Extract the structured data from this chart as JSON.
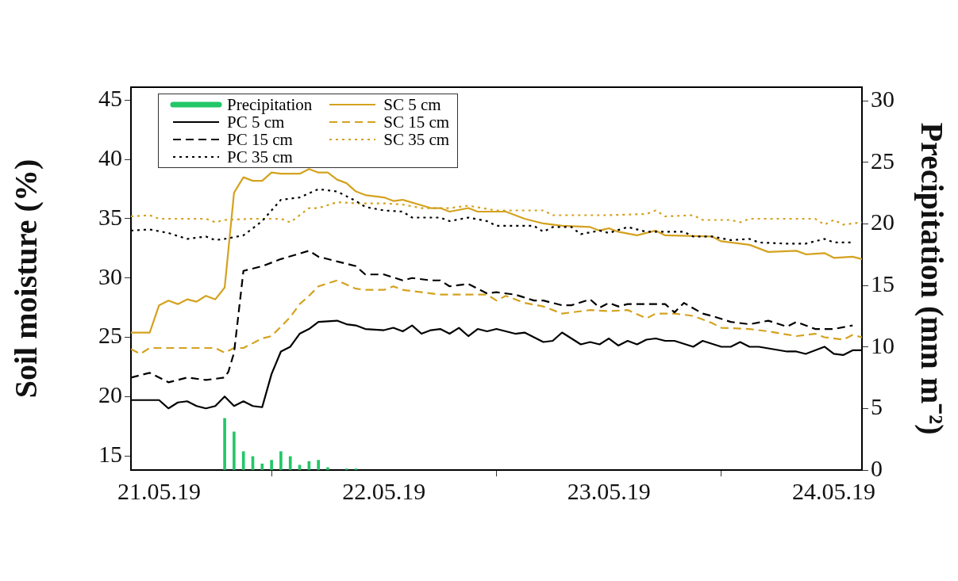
{
  "chart_data": {
    "type": "line",
    "ylabel": "Soil moisture (%)",
    "y2label": "Precipitation (mm m⁻²)",
    "xlim": [
      "--05-20T21:00",
      "--05-24T03:00"
    ],
    "xticks": [
      {
        "value": "--05-21",
        "label": "21.05.19"
      },
      {
        "value": "--05-22",
        "label": "22.05.19"
      },
      {
        "value": "--05-23",
        "label": "23.05.19"
      },
      {
        "value": "--05-24",
        "label": "24.05.19"
      }
    ],
    "ylim": [
      13.8,
      46.1
    ],
    "yticks": [
      15,
      20,
      25,
      30,
      35,
      40,
      45
    ],
    "y2lim": [
      0,
      31.1
    ],
    "y2ticks": [
      0,
      5,
      10,
      15,
      20,
      25,
      30
    ],
    "legend": "top left",
    "series": [
      {
        "name": "Precipitation",
        "type": "bar",
        "axis": "y2",
        "color": "#22c768",
        "x": [
          "--05-21T07:00",
          "--05-21T08:00",
          "--05-21T09:00",
          "--05-21T10:00",
          "--05-21T11:00",
          "--05-21T12:00",
          "--05-21T13:00",
          "--05-21T14:00",
          "--05-21T15:00",
          "--05-21T16:00",
          "--05-21T17:00",
          "--05-21T18:00",
          "--05-21T20:00",
          "--05-21T21:00"
        ],
        "values": [
          4.2,
          3.1,
          1.5,
          1.1,
          0.5,
          0.8,
          1.5,
          1.1,
          0.4,
          0.7,
          0.8,
          0.2,
          0.1,
          0.1
        ]
      },
      {
        "name": "PC 5 cm",
        "color": "#000000",
        "line_style": "solid",
        "x": [
          "--05-20T21:00",
          "--05-21T00:00",
          "--05-21T01:00",
          "--05-21T02:00",
          "--05-21T03:00",
          "--05-21T04:00",
          "--05-21T05:00",
          "--05-21T06:00",
          "--05-21T07:00",
          "--05-21T08:00",
          "--05-21T09:00",
          "--05-21T10:00",
          "--05-21T11:00",
          "--05-21T12:00",
          "--05-21T13:00",
          "--05-21T14:00",
          "--05-21T15:00",
          "--05-21T16:00",
          "--05-21T17:00",
          "--05-21T19:00",
          "--05-21T20:00",
          "--05-21T21:00",
          "--05-21T22:00",
          "--05-22T00:00",
          "--05-22T01:00",
          "--05-22T02:00",
          "--05-22T03:00",
          "--05-22T04:00",
          "--05-22T05:00",
          "--05-22T06:00",
          "--05-22T07:00",
          "--05-22T08:00",
          "--05-22T09:00",
          "--05-22T10:00",
          "--05-22T11:00",
          "--05-22T12:00",
          "--05-22T14:00",
          "--05-22T15:00",
          "--05-22T17:00",
          "--05-22T18:00",
          "--05-22T19:00",
          "--05-22T20:00",
          "--05-22T21:00",
          "--05-22T22:00",
          "--05-22T23:00",
          "--05-23T00:00",
          "--05-23T01:00",
          "--05-23T02:00",
          "--05-23T03:00",
          "--05-23T04:00",
          "--05-23T05:00",
          "--05-23T06:00",
          "--05-23T07:00",
          "--05-23T09:00",
          "--05-23T10:00",
          "--05-23T12:00",
          "--05-23T13:00",
          "--05-23T14:00",
          "--05-23T15:00",
          "--05-23T16:00",
          "--05-23T19:00",
          "--05-23T20:00",
          "--05-23T21:00",
          "--05-23T23:00",
          "--05-24T00:00",
          "--05-24T01:00",
          "--05-24T02:00",
          "--05-24T03:00"
        ],
        "values": [
          19.7,
          19.7,
          19.0,
          19.5,
          19.6,
          19.2,
          19.0,
          19.2,
          20.0,
          19.2,
          19.6,
          19.2,
          19.1,
          21.9,
          23.8,
          24.2,
          25.3,
          25.7,
          26.3,
          26.4,
          26.1,
          26.0,
          25.7,
          25.6,
          25.8,
          25.5,
          26.0,
          25.3,
          25.6,
          25.7,
          25.3,
          25.8,
          25.1,
          25.7,
          25.5,
          25.7,
          25.3,
          25.4,
          24.6,
          24.7,
          25.4,
          24.9,
          24.4,
          24.6,
          24.4,
          24.9,
          24.3,
          24.7,
          24.4,
          24.8,
          24.9,
          24.7,
          24.7,
          24.2,
          24.7,
          24.2,
          24.2,
          24.6,
          24.2,
          24.2,
          23.8,
          23.8,
          23.6,
          24.2,
          23.6,
          23.5,
          23.9,
          23.9
        ]
      },
      {
        "name": "PC 15 cm",
        "color": "#000000",
        "line_style": "dashed",
        "x": [
          "--05-20T21:00",
          "--05-20T23:00",
          "--05-21T01:00",
          "--05-21T03:00",
          "--05-21T05:00",
          "--05-21T07:00",
          "--05-21T07:24",
          "--05-21T08:00",
          "--05-21T09:00",
          "--05-21T11:00",
          "--05-21T13:00",
          "--05-21T16:00",
          "--05-21T17:00",
          "--05-21T19:00",
          "--05-21T21:00",
          "--05-21T22:00",
          "--05-22T00:00",
          "--05-22T02:00",
          "--05-22T03:00",
          "--05-22T05:00",
          "--05-22T06:00",
          "--05-22T07:00",
          "--05-22T09:00",
          "--05-22T11:00",
          "--05-22T12:00",
          "--05-22T14:00",
          "--05-22T16:00",
          "--05-22T17:00",
          "--05-22T19:00",
          "--05-22T20:00",
          "--05-22T22:00",
          "--05-22T23:00",
          "--05-23T00:00",
          "--05-23T01:00",
          "--05-23T02:00",
          "--05-23T04:00",
          "--05-23T06:00",
          "--05-23T07:00",
          "--05-23T08:00",
          "--05-23T10:00",
          "--05-23T11:00",
          "--05-23T13:00",
          "--05-23T15:00",
          "--05-23T17:00",
          "--05-23T19:00",
          "--05-23T20:00",
          "--05-23T22:00",
          "--05-24T00:00",
          "--05-24T02:00"
        ],
        "values": [
          21.6,
          22.0,
          21.2,
          21.6,
          21.4,
          21.6,
          22.1,
          23.7,
          30.6,
          31.0,
          31.6,
          32.3,
          31.8,
          31.4,
          31.0,
          30.3,
          30.3,
          29.8,
          30.0,
          29.8,
          29.8,
          29.3,
          29.5,
          28.7,
          28.8,
          28.6,
          28.1,
          28.1,
          27.7,
          27.7,
          28.2,
          27.5,
          27.9,
          27.6,
          27.8,
          27.8,
          27.8,
          27.1,
          27.9,
          27.0,
          26.8,
          26.3,
          26.1,
          26.4,
          25.9,
          26.3,
          25.7,
          25.7,
          26.0
        ]
      },
      {
        "name": "PC 35 cm",
        "color": "#000000",
        "line_style": "dotted",
        "x": [
          "--05-20T21:00",
          "--05-20T23:00",
          "--05-21T01:00",
          "--05-21T03:00",
          "--05-21T05:00",
          "--05-21T06:00",
          "--05-21T07:00",
          "--05-21T09:00",
          "--05-21T11:00",
          "--05-21T13:00",
          "--05-21T15:00",
          "--05-21T17:00",
          "--05-21T19:00",
          "--05-21T21:00",
          "--05-21T22:00",
          "--05-22T00:00",
          "--05-22T02:00",
          "--05-22T03:00",
          "--05-22T06:00",
          "--05-22T07:00",
          "--05-22T09:00",
          "--05-22T11:00",
          "--05-22T12:00",
          "--05-22T16:00",
          "--05-22T17:00",
          "--05-22T18:00",
          "--05-22T20:00",
          "--05-22T21:00",
          "--05-22T23:00",
          "--05-23T00:00",
          "--05-23T02:00",
          "--05-23T04:00",
          "--05-23T05:00",
          "--05-23T08:00",
          "--05-23T09:00",
          "--05-23T11:00",
          "--05-23T13:00",
          "--05-23T15:00",
          "--05-23T16:00",
          "--05-23T19:00",
          "--05-23T21:00",
          "--05-23T23:00",
          "--05-24T00:00",
          "--05-24T02:00"
        ],
        "values": [
          34.0,
          34.1,
          33.8,
          33.3,
          33.5,
          33.2,
          33.3,
          33.6,
          34.8,
          36.6,
          36.8,
          37.5,
          37.3,
          36.5,
          36.0,
          35.7,
          35.6,
          35.1,
          35.1,
          34.8,
          35.1,
          34.8,
          34.4,
          34.4,
          33.9,
          34.3,
          34.3,
          33.7,
          34.0,
          33.8,
          34.3,
          33.9,
          33.9,
          33.9,
          33.5,
          33.5,
          33.2,
          33.3,
          33.0,
          32.9,
          32.9,
          33.3,
          33.0,
          33.0
        ]
      },
      {
        "name": "SC 5 cm",
        "color": "#d4a21f",
        "line_style": "solid",
        "x": [
          "--05-20T21:00",
          "--05-20T23:00",
          "--05-21T00:00",
          "--05-21T01:00",
          "--05-21T02:00",
          "--05-21T03:00",
          "--05-21T04:00",
          "--05-21T05:00",
          "--05-21T06:00",
          "--05-21T07:00",
          "--05-21T08:00",
          "--05-21T09:00",
          "--05-21T10:00",
          "--05-21T11:00",
          "--05-21T12:00",
          "--05-21T13:00",
          "--05-21T15:00",
          "--05-21T16:00",
          "--05-21T17:00",
          "--05-21T18:00",
          "--05-21T19:00",
          "--05-21T20:00",
          "--05-21T21:00",
          "--05-21T22:00",
          "--05-21T23:00",
          "--05-22T00:00",
          "--05-22T01:00",
          "--05-22T02:00",
          "--05-22T05:00",
          "--05-22T06:00",
          "--05-22T07:00",
          "--05-22T09:00",
          "--05-22T10:00",
          "--05-22T13:00",
          "--05-22T15:00",
          "--05-22T17:00",
          "--05-22T19:00",
          "--05-22T22:00",
          "--05-22T23:00",
          "--05-23T00:00",
          "--05-23T01:00",
          "--05-23T03:00",
          "--05-23T05:00",
          "--05-23T06:00",
          "--05-23T11:00",
          "--05-23T12:00",
          "--05-23T15:00",
          "--05-23T17:00",
          "--05-23T20:00",
          "--05-23T21:00",
          "--05-23T23:00",
          "--05-24T00:00",
          "--05-24T02:00",
          "--05-24T03:00"
        ],
        "values": [
          25.4,
          25.4,
          27.7,
          28.1,
          27.8,
          28.2,
          28.0,
          28.5,
          28.2,
          29.2,
          37.2,
          38.5,
          38.2,
          38.2,
          38.9,
          38.8,
          38.8,
          39.2,
          38.9,
          38.9,
          38.3,
          38.0,
          37.3,
          37.0,
          36.9,
          36.8,
          36.5,
          36.6,
          35.9,
          35.9,
          35.6,
          35.9,
          35.6,
          35.6,
          35.0,
          34.6,
          34.4,
          34.3,
          34.0,
          34.2,
          33.9,
          33.6,
          34.0,
          33.6,
          33.5,
          33.1,
          32.8,
          32.2,
          32.3,
          32.0,
          32.1,
          31.7,
          31.8,
          31.6
        ]
      },
      {
        "name": "SC 15 cm",
        "color": "#d4a21f",
        "line_style": "dashed",
        "x": [
          "--05-20T21:00",
          "--05-20T22:00",
          "--05-20T23:00",
          "--05-21T06:00",
          "--05-21T07:00",
          "--05-21T08:00",
          "--05-21T09:00",
          "--05-21T11:00",
          "--05-21T12:00",
          "--05-21T14:00",
          "--05-21T15:00",
          "--05-21T16:00",
          "--05-21T17:00",
          "--05-21T19:00",
          "--05-21T21:00",
          "--05-21T22:00",
          "--05-22T00:00",
          "--05-22T01:00",
          "--05-22T02:00",
          "--05-22T04:00",
          "--05-22T06:00",
          "--05-22T09:00",
          "--05-22T11:00",
          "--05-22T12:00",
          "--05-22T13:00",
          "--05-22T15:00",
          "--05-22T17:00",
          "--05-22T19:00",
          "--05-22T22:00",
          "--05-23T00:00",
          "--05-23T02:00",
          "--05-23T04:00",
          "--05-23T05:00",
          "--05-23T07:00",
          "--05-23T09:00",
          "--05-23T11:00",
          "--05-23T12:00",
          "--05-23T15:00",
          "--05-23T17:00",
          "--05-23T20:00",
          "--05-23T22:00",
          "--05-23T23:00",
          "--05-24T01:00",
          "--05-24T02:00",
          "--05-24T03:00"
        ],
        "values": [
          24.0,
          23.6,
          24.1,
          24.1,
          23.7,
          24.1,
          24.1,
          24.9,
          25.1,
          26.7,
          27.8,
          28.5,
          29.3,
          29.8,
          29.1,
          29.0,
          29.0,
          29.3,
          29.0,
          28.8,
          28.6,
          28.6,
          28.6,
          28.1,
          28.5,
          27.9,
          27.6,
          27.0,
          27.3,
          27.2,
          27.3,
          26.6,
          27.0,
          27.0,
          26.8,
          26.2,
          25.8,
          25.7,
          25.5,
          25.1,
          25.3,
          25.0,
          24.8,
          25.2,
          25.0
        ]
      },
      {
        "name": "SC 35 cm",
        "color": "#d4a21f",
        "line_style": "dotted",
        "x": [
          "--05-20T21:00",
          "--05-20T23:00",
          "--05-21T00:00",
          "--05-21T05:00",
          "--05-21T06:00",
          "--05-21T07:00",
          "--05-21T10:00",
          "--05-21T13:00",
          "--05-21T14:00",
          "--05-21T16:00",
          "--05-21T17:00",
          "--05-21T19:00",
          "--05-21T21:00",
          "--05-22T00:00",
          "--05-22T02:00",
          "--05-22T04:00",
          "--05-22T07:00",
          "--05-22T09:00",
          "--05-22T12:00",
          "--05-22T17:00",
          "--05-22T18:00",
          "--05-23T00:00",
          "--05-23T04:00",
          "--05-23T05:00",
          "--05-23T06:00",
          "--05-23T09:00",
          "--05-23T10:00",
          "--05-23T13:00",
          "--05-23T14:00",
          "--05-23T15:00",
          "--05-23T22:00",
          "--05-23T23:00",
          "--05-24T00:00",
          "--05-24T01:00",
          "--05-24T03:00"
        ],
        "values": [
          35.2,
          35.3,
          35.0,
          35.0,
          34.7,
          34.9,
          35.0,
          35.0,
          34.7,
          35.9,
          35.9,
          36.4,
          36.3,
          36.3,
          36.2,
          35.9,
          35.9,
          36.1,
          35.7,
          35.7,
          35.3,
          35.3,
          35.4,
          35.7,
          35.2,
          35.3,
          34.9,
          34.9,
          34.7,
          35.0,
          35.0,
          34.5,
          34.9,
          34.5,
          34.7
        ]
      }
    ]
  }
}
